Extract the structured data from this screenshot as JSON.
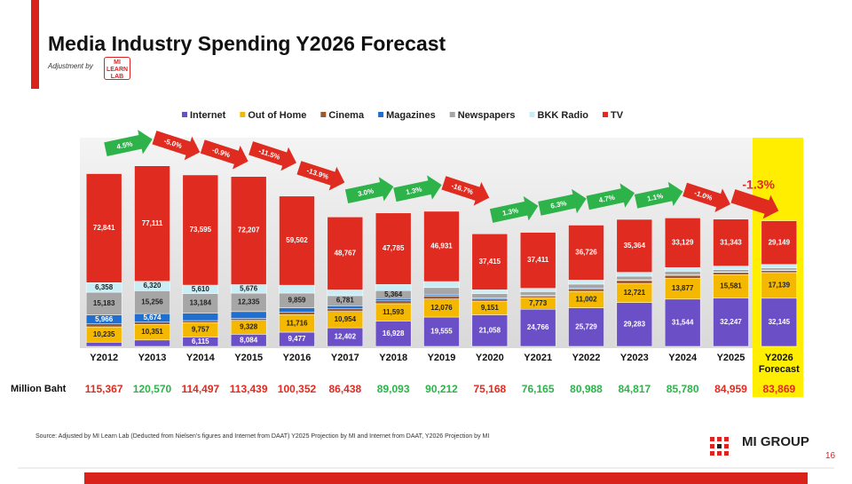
{
  "header": {
    "title": "Media Industry Spending Y2026 Forecast",
    "adjustment": "Adjustment by",
    "logo": "MI LEARN LAB"
  },
  "chart_data": {
    "type": "stacked_bar",
    "categories": [
      "Y2012",
      "Y2013",
      "Y2014",
      "Y2015",
      "Y2016",
      "Y2017",
      "Y2018",
      "Y2019",
      "Y2020",
      "Y2021",
      "Y2022",
      "Y2023",
      "Y2024",
      "Y2025",
      "Y2026 Forecast"
    ],
    "series": [
      {
        "name": "Internet",
        "color": "#6a4fc7",
        "values": [
          2784,
          4248,
          6115,
          8084,
          9477,
          12402,
          16928,
          19555,
          21058,
          24766,
          25729,
          29283,
          31544,
          32247,
          32145
        ]
      },
      {
        "name": "Out of Home",
        "color": "#f5b800",
        "values": [
          10235,
          10351,
          9757,
          9328,
          11716,
          10954,
          11593,
          12076,
          9151,
          7773,
          11002,
          12721,
          13877,
          15581,
          17139
        ]
      },
      {
        "name": "Cinema",
        "color": "#9c5a2c",
        "values": [
          2000,
          1610,
          1315,
          1244,
          1536,
          1729,
          1862,
          1806,
          1346,
          915,
          1725,
          1999,
          2030,
          1551,
          1391
        ]
      },
      {
        "name": "Magazines",
        "color": "#1f6fd0",
        "values": [
          5966,
          5674,
          4921,
          4565,
          3000,
          2000,
          1500,
          1000,
          800,
          600,
          500,
          450,
          400,
          350,
          300
        ]
      },
      {
        "name": "Newspapers",
        "color": "#a6a6a6",
        "values": [
          15183,
          15256,
          13184,
          12335,
          9859,
          6781,
          5364,
          4819,
          2898,
          2500,
          2600,
          2400,
          2300,
          1500,
          1400
        ]
      },
      {
        "name": "BKK Radio",
        "color": "#c9eef6",
        "values": [
          6358,
          6320,
          5610,
          5676,
          5262,
          3805,
          4061,
          4025,
          2500,
          2200,
          2706,
          2600,
          2500,
          2387,
          2345
        ]
      },
      {
        "name": "TV",
        "color": "#e02b20",
        "values": [
          72841,
          77111,
          73595,
          72207,
          59502,
          48767,
          47785,
          46931,
          37415,
          37411,
          36726,
          35364,
          33129,
          31343,
          29149
        ]
      }
    ],
    "ylim": [
      0,
      140000
    ],
    "growth": {
      "values": [
        4.5,
        -5.0,
        -0.9,
        -11.5,
        -13.9,
        3.0,
        1.3,
        -16.7,
        1.3,
        6.3,
        4.7,
        1.1,
        -1.0,
        -1.3
      ],
      "value_labels": [
        "4.5%",
        "-5.0%",
        "-0.9%",
        "-11.5%",
        "-13.9%",
        "3.0%",
        "1.3%",
        "-16.7%",
        "1.3%",
        "6.3%",
        "4.7%",
        "1.1%",
        "-1.0%",
        "-1.3%"
      ]
    },
    "totals_label": "Million Baht",
    "totals": {
      "values": [
        115367,
        120570,
        114497,
        113439,
        100352,
        86438,
        89093,
        90212,
        75168,
        76165,
        80988,
        84817,
        85780,
        84959,
        83869
      ],
      "value_labels": [
        "115,367",
        "120,570",
        "114,497",
        "113,439",
        "100,352",
        "86,438",
        "89,093",
        "90,212",
        "75,168",
        "76,165",
        "80,988",
        "84,817",
        "85,780",
        "84,959",
        "83,869"
      ]
    },
    "source": "Source: Adjusted by MI Learn Lab (Deducted  from Nielsen's figures and Internet from DAAT) Y2025 Projection by MI and Internet from DAAT, Y2026 Projection by MI"
  },
  "footer": {
    "brand": "MI GROUP",
    "page": "16"
  }
}
